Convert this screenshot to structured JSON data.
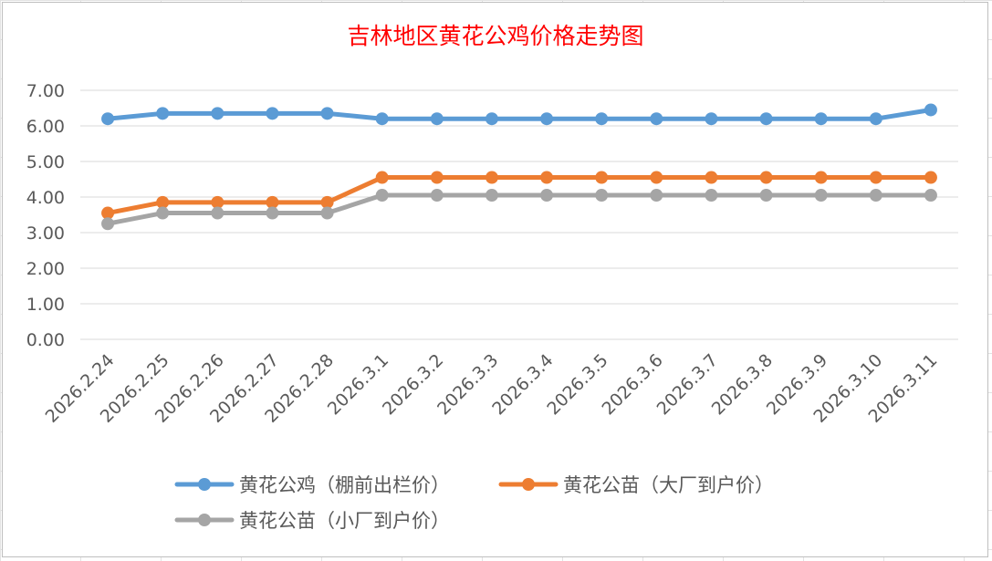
{
  "chart_data": {
    "type": "line",
    "title": "吉林地区黄花公鸡价格走势图",
    "xlabel": "",
    "ylabel": "",
    "ylim": [
      0,
      7
    ],
    "yticks": [
      "0.00",
      "1.00",
      "2.00",
      "3.00",
      "4.00",
      "5.00",
      "6.00",
      "7.00"
    ],
    "grid": "horizontal",
    "legend_position": "bottom",
    "categories": [
      "2026.2.24",
      "2026.2.25",
      "2026.2.26",
      "2026.2.27",
      "2026.2.28",
      "2026.3.1",
      "2026.3.2",
      "2026.3.3",
      "2026.3.4",
      "2026.3.5",
      "2026.3.6",
      "2026.3.7",
      "2026.3.8",
      "2026.3.9",
      "2026.3.10",
      "2026.3.11"
    ],
    "series": [
      {
        "name": "黄花公鸡（棚前出栏价）",
        "color": "#5b9bd5",
        "values": [
          6.2,
          6.35,
          6.35,
          6.35,
          6.35,
          6.2,
          6.2,
          6.2,
          6.2,
          6.2,
          6.2,
          6.2,
          6.2,
          6.2,
          6.2,
          6.45
        ]
      },
      {
        "name": "黄花公苗（大厂到户价）",
        "color": "#ed7d31",
        "values": [
          3.55,
          3.85,
          3.85,
          3.85,
          3.85,
          4.55,
          4.55,
          4.55,
          4.55,
          4.55,
          4.55,
          4.55,
          4.55,
          4.55,
          4.55,
          4.55
        ]
      },
      {
        "name": "黄花公苗（小厂到户价）",
        "color": "#a5a5a5",
        "values": [
          3.25,
          3.55,
          3.55,
          3.55,
          3.55,
          4.05,
          4.05,
          4.05,
          4.05,
          4.05,
          4.05,
          4.05,
          4.05,
          4.05,
          4.05,
          4.05
        ]
      }
    ]
  }
}
